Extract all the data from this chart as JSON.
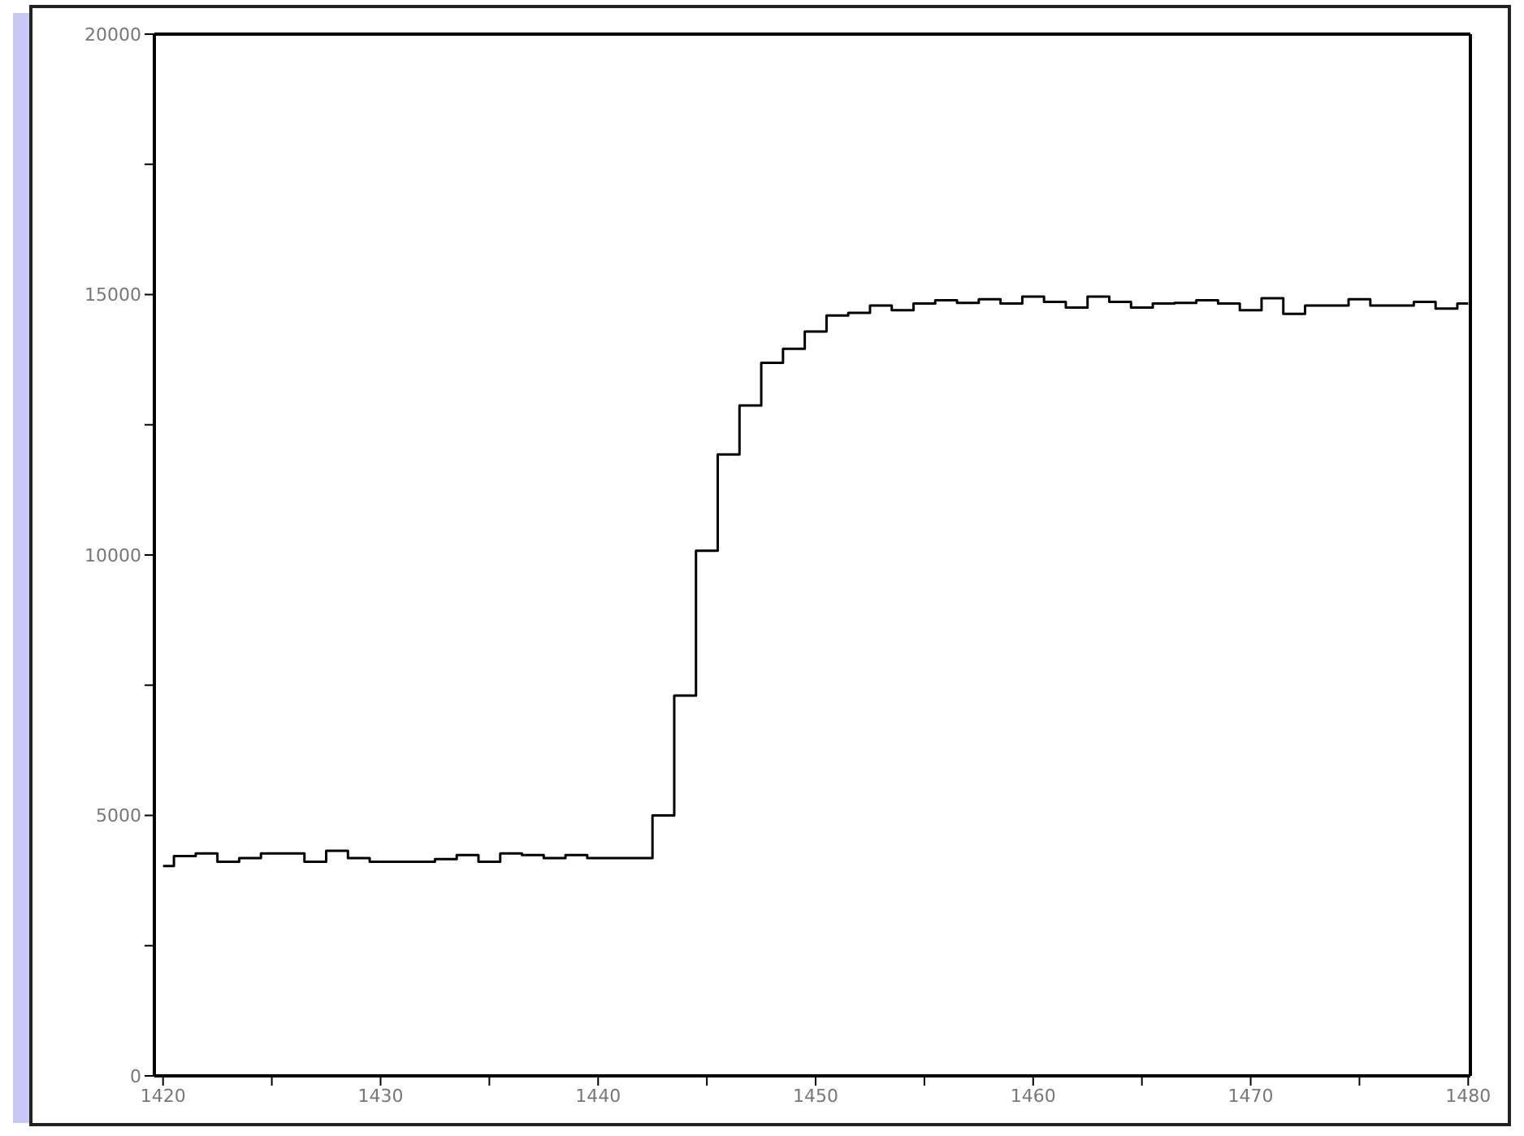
{
  "chart_data": {
    "type": "step",
    "x": [
      1420,
      1421,
      1422,
      1423,
      1424,
      1425,
      1426,
      1427,
      1428,
      1429,
      1430,
      1431,
      1432,
      1433,
      1434,
      1435,
      1436,
      1437,
      1438,
      1439,
      1440,
      1441,
      1442,
      1443,
      1444,
      1445,
      1446,
      1447,
      1448,
      1449,
      1450,
      1451,
      1452,
      1453,
      1454,
      1455,
      1456,
      1457,
      1458,
      1459,
      1460,
      1461,
      1462,
      1463,
      1464,
      1465,
      1466,
      1467,
      1468,
      1469,
      1470,
      1471,
      1472,
      1473,
      1474,
      1475,
      1476,
      1477,
      1478,
      1479,
      1480
    ],
    "series": [
      {
        "color": "#000000",
        "values": [
          4030,
          4220,
          4270,
          4110,
          4180,
          4270,
          4270,
          4110,
          4320,
          4180,
          4110,
          4110,
          4110,
          4160,
          4240,
          4110,
          4270,
          4240,
          4180,
          4240,
          4180,
          4180,
          4180,
          5000,
          7300,
          10080,
          11930,
          12870,
          13690,
          13960,
          14290,
          14600,
          14650,
          14790,
          14700,
          14830,
          14890,
          14840,
          14910,
          14830,
          14960,
          14860,
          14750,
          14960,
          14860,
          14750,
          14830,
          14840,
          14890,
          14830,
          14700,
          14930,
          14630,
          14790,
          14790,
          14910,
          14790,
          14790,
          14860,
          14730,
          14830
        ]
      }
    ],
    "xlim": [
      1419.6,
      1480.1
    ],
    "xticks": [
      1420,
      {
        "value": 1425,
        "label": null
      },
      1430,
      {
        "value": 1435,
        "label": null
      },
      1440,
      {
        "value": 1445,
        "label": null
      },
      1450,
      {
        "value": 1455,
        "label": null
      },
      1460,
      {
        "value": 1465,
        "label": null
      },
      1470,
      {
        "value": 1475,
        "label": null
      },
      1480
    ],
    "ylim": [
      0,
      20000
    ],
    "yticks": [
      0,
      {
        "value": 2500,
        "label": null
      },
      5000,
      {
        "value": 7500,
        "label": null
      },
      10000,
      {
        "value": 12500,
        "label": null
      },
      15000,
      {
        "value": 17500,
        "label": null
      },
      20000
    ],
    "grid": false,
    "legend": false,
    "marker": "none",
    "line_style": "solid"
  }
}
